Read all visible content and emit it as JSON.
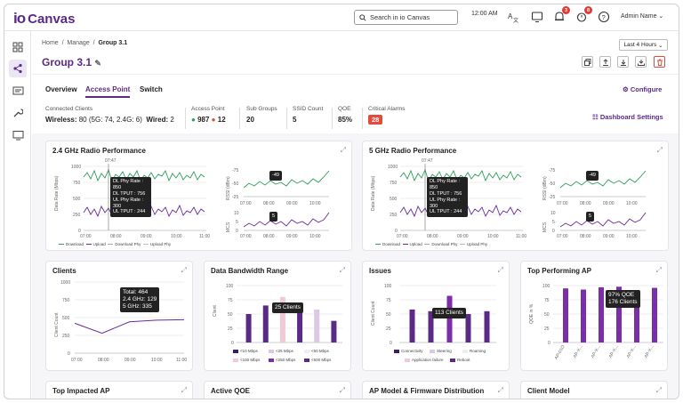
{
  "app": {
    "logo_mark": "io",
    "logo_text": "Canvas",
    "search_placeholder": "Search in io Canvas",
    "time": "12:00 AM",
    "alerts_badge": "3",
    "notif_badge": "8",
    "user": "Admin Name"
  },
  "breadcrumb": {
    "home": "Home",
    "manage": "Manage",
    "current": "Group 3.1"
  },
  "page": {
    "title": "Group 3.1",
    "time_range": "Last 4 Hours"
  },
  "tabs": [
    "Overview",
    "Access Point",
    "Switch"
  ],
  "configure": "Configure",
  "stats": {
    "connected_label": "Connected Clients",
    "wireless_label": "Wireless:",
    "wireless_value": "80 (5G: 74, 2.4G: 6)",
    "wired_label": "Wired:",
    "wired_value": "2",
    "ap_label": "Access Point",
    "ap_up": "987",
    "ap_down": "12",
    "subgroups_label": "Sub Groups",
    "subgroups_value": "20",
    "ssid_label": "SSID Count",
    "ssid_value": "5",
    "qoe_label": "QOE",
    "qoe_value": "85%",
    "alarms_label": "Critical Alarms",
    "alarms_value": "28",
    "dashboard_settings": "Dashboard Settings"
  },
  "colors": {
    "brand": "#5b2a86",
    "green": "#2e9e5b",
    "purple": "#6a2a9a",
    "red": "#e24a3b"
  },
  "radio24": {
    "title": "2.4 GHz Radio Performance",
    "marker": "07:47",
    "ylabel": "Data Rate (Mbps)",
    "yticks": [
      "1000",
      "750",
      "500",
      "250",
      "0"
    ],
    "xticks": [
      "07:00",
      "08:00",
      "09:00",
      "10:00",
      "11:00"
    ],
    "tip": [
      "DL Phy Rate : 850",
      "DL TPUT : 756",
      "UL Phy Rate : 300",
      "UL TPUT : 244"
    ],
    "rssi_label": "RSSI (dBm)",
    "rssi_ticks": [
      "-75",
      "-50",
      "-25"
    ],
    "rssi_tip": "-49",
    "mcs_label": "MCS",
    "mcs_ticks": [
      "10",
      "5",
      "0"
    ],
    "mcs_tip": "5",
    "small_x": [
      "07:00",
      "08:00",
      "09:00",
      "10:00"
    ],
    "legend": [
      "Download",
      "Upload",
      "Download Phy",
      "Upload Phy"
    ]
  },
  "radio5": {
    "title": "5 GHz Radio Performance",
    "marker": "07:47",
    "ylabel": "Data Rate (Mbps)",
    "yticks": [
      "1000",
      "750",
      "500",
      "250",
      "0"
    ],
    "xticks": [
      "07:00",
      "08:00",
      "09:00",
      "10:00",
      "11:00"
    ],
    "tip": [
      "DL Phy Rate : 850",
      "DL TPUT : 756",
      "UL Phy Rate : 300",
      "UL TPUT : 244"
    ],
    "rssi_label": "RSSI (dBm)",
    "rssi_ticks": [
      "-75",
      "-50",
      "-25"
    ],
    "rssi_tip": "-49",
    "mcs_label": "MCS",
    "mcs_ticks": [
      "10",
      "5",
      "0"
    ],
    "mcs_tip": "5",
    "small_x": [
      "07:00",
      "08:00",
      "09:00",
      "10:00"
    ],
    "legend": [
      "Download",
      "Upload",
      "Download Phy",
      "Upload Phy"
    ]
  },
  "clients": {
    "title": "Clients",
    "ylabel": "Client Count",
    "yticks": [
      "1000",
      "750",
      "500",
      "250",
      "0"
    ],
    "xticks": [
      "07:00",
      "08:00",
      "09:00",
      "10:00",
      "11:00"
    ],
    "tip": [
      "Total: 464",
      "2.4 GHz: 129",
      "5 GHz: 335"
    ]
  },
  "bandwidth": {
    "title": "Data Bandwidth Range",
    "ylabel": "Client",
    "yticks": [
      "100",
      "75",
      "50",
      "25",
      "0"
    ],
    "tip": "25 Clients",
    "legend": [
      "<10 Mbps",
      "<25 Mbps",
      "<50 Mbps",
      "<100 Mbps",
      "<250 Mbps",
      "<500 Mbps"
    ]
  },
  "issues": {
    "title": "Issues",
    "ylabel": "Client Count",
    "yticks": [
      "100",
      "75",
      "50",
      "25",
      "0"
    ],
    "tip": "113 Clients",
    "legend": [
      "Connectivity",
      "Steering",
      "Roaming",
      "Application failure",
      "Reboot"
    ]
  },
  "top_ap": {
    "title": "Top Performing AP",
    "ylabel": "QOE in %",
    "yticks": [
      "100",
      "75",
      "50",
      "25",
      "0"
    ],
    "tip": [
      "97% QOE",
      "176 Clients"
    ],
    "xlabels": [
      "AP-01O",
      "AP-X...",
      "AP-X...",
      "AP-X...",
      "AP-X...",
      "AP-X..."
    ]
  },
  "bottom_cards": [
    "Top Impacted AP",
    "Active QOE",
    "AP Model & Firmware Distribution",
    "Client Model"
  ],
  "chart_data": [
    {
      "type": "bar",
      "title": "Data Bandwidth Range",
      "ylabel": "Client",
      "ylim": [
        0,
        100
      ],
      "categories": [
        "<10 Mbps",
        "<25 Mbps",
        "<50 Mbps",
        "<100 Mbps",
        "<250 Mbps",
        "<500 Mbps"
      ],
      "values": [
        50,
        65,
        80,
        62,
        58,
        38
      ]
    },
    {
      "type": "bar",
      "title": "Issues",
      "ylabel": "Client Count",
      "ylim": [
        0,
        100
      ],
      "categories": [
        "Connectivity",
        "Steering",
        "Roaming",
        "Application failure",
        "Reboot"
      ],
      "values": [
        58,
        55,
        82,
        50,
        55
      ]
    },
    {
      "type": "bar",
      "title": "Top Performing AP",
      "ylabel": "QOE in %",
      "ylim": [
        0,
        100
      ],
      "categories": [
        "AP-01O",
        "AP-X...",
        "AP-X...",
        "AP-X...",
        "AP-X...",
        "AP-X..."
      ],
      "values": [
        95,
        93,
        97,
        98,
        92,
        96
      ]
    },
    {
      "type": "line",
      "title": "Clients",
      "ylabel": "Client Count",
      "ylim": [
        0,
        1000
      ],
      "x": [
        "07:00",
        "08:00",
        "09:00",
        "10:00",
        "11:00"
      ],
      "values": [
        420,
        280,
        440,
        464,
        470
      ]
    }
  ]
}
